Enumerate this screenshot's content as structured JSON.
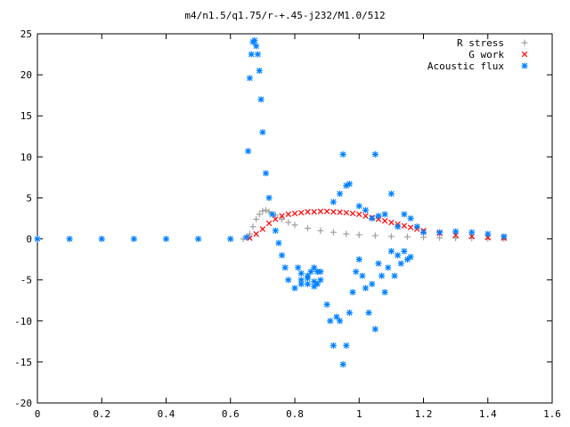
{
  "chart_data": {
    "type": "scatter",
    "title": "m4/n1.5/q1.75/r-+.45-j232/M1.0/512",
    "xlabel": "",
    "ylabel": "",
    "xlim": [
      0,
      1.6
    ],
    "ylim": [
      -20,
      25
    ],
    "xticks": [
      "0",
      "0.2",
      "0.4",
      "0.6",
      "0.8",
      "1",
      "1.2",
      "1.4",
      "1.6"
    ],
    "yticks": [
      "-20",
      "-15",
      "-10",
      "-5",
      "0",
      "5",
      "10",
      "15",
      "20",
      "25"
    ],
    "grid": false,
    "legend_position": "top-right",
    "series": [
      {
        "name": "R stress",
        "marker": "+",
        "color": "#a0a0a0",
        "x": [
          0.0,
          0.1,
          0.2,
          0.3,
          0.4,
          0.5,
          0.6,
          0.64,
          0.66,
          0.67,
          0.68,
          0.69,
          0.7,
          0.71,
          0.72,
          0.74,
          0.76,
          0.78,
          0.8,
          0.84,
          0.88,
          0.92,
          0.96,
          1.0,
          1.05,
          1.1,
          1.15,
          1.2,
          1.25,
          1.3,
          1.35,
          1.4,
          1.45
        ],
        "y": [
          0,
          0,
          0,
          0,
          0,
          0,
          0,
          0,
          0.6,
          1.5,
          2.4,
          3.0,
          3.4,
          3.5,
          3.3,
          2.9,
          2.4,
          2.0,
          1.7,
          1.3,
          1.0,
          0.8,
          0.6,
          0.5,
          0.4,
          0.3,
          0.25,
          0.2,
          0.15,
          0.1,
          0.1,
          0.05,
          0.0
        ]
      },
      {
        "name": "G work",
        "marker": "x",
        "color": "#ff0000",
        "x": [
          0.66,
          0.68,
          0.7,
          0.72,
          0.74,
          0.76,
          0.78,
          0.8,
          0.82,
          0.84,
          0.86,
          0.88,
          0.9,
          0.92,
          0.94,
          0.96,
          0.98,
          1.0,
          1.02,
          1.04,
          1.06,
          1.08,
          1.1,
          1.12,
          1.14,
          1.16,
          1.18,
          1.2,
          1.25,
          1.3,
          1.35,
          1.4,
          1.45
        ],
        "y": [
          0.1,
          0.6,
          1.2,
          1.9,
          2.4,
          2.8,
          3.0,
          3.1,
          3.2,
          3.3,
          3.3,
          3.35,
          3.35,
          3.3,
          3.25,
          3.2,
          3.1,
          3.0,
          2.8,
          2.6,
          2.4,
          2.2,
          2.0,
          1.8,
          1.6,
          1.4,
          1.2,
          1.0,
          0.7,
          0.45,
          0.3,
          0.15,
          0.1
        ]
      },
      {
        "name": "Acoustic flux",
        "marker": "*",
        "color": "#0080ff",
        "x": [
          0.0,
          0.1,
          0.2,
          0.3,
          0.4,
          0.5,
          0.6,
          0.65,
          0.655,
          0.66,
          0.665,
          0.67,
          0.675,
          0.68,
          0.685,
          0.69,
          0.695,
          0.7,
          0.71,
          0.72,
          0.73,
          0.74,
          0.75,
          0.76,
          0.77,
          0.78,
          0.8,
          0.82,
          0.84,
          0.85,
          0.86,
          0.87,
          0.88,
          0.87,
          0.86,
          0.84,
          0.82,
          0.81,
          0.82,
          0.84,
          0.86,
          0.88,
          0.9,
          0.91,
          0.92,
          0.93,
          0.94,
          0.95,
          0.96,
          0.97,
          0.98,
          0.99,
          1.0,
          1.01,
          1.02,
          1.03,
          1.04,
          1.05,
          1.06,
          1.07,
          1.08,
          1.09,
          1.1,
          1.11,
          1.12,
          1.13,
          1.14,
          1.15,
          1.16,
          0.95,
          0.96,
          1.05,
          0.92,
          0.94,
          0.97,
          1.0,
          1.02,
          1.04,
          1.06,
          1.08,
          1.1,
          1.12,
          1.14,
          1.16,
          1.18,
          1.2,
          1.25,
          1.3,
          1.35,
          1.4,
          1.45
        ],
        "y": [
          0,
          0,
          0,
          0,
          0,
          0,
          0,
          0.2,
          10.7,
          19.6,
          22.5,
          24.0,
          24.2,
          23.5,
          22.5,
          20.5,
          17.0,
          13.0,
          8.0,
          5.0,
          3.0,
          1.0,
          -0.5,
          -2.0,
          -3.5,
          -5.0,
          -6.0,
          -5.5,
          -4.5,
          -4.0,
          -3.5,
          -4.0,
          -5.0,
          -5.5,
          -5.8,
          -5.5,
          -5.0,
          -3.5,
          -4.2,
          -4.8,
          -5.2,
          -4.0,
          -8.0,
          -10.0,
          -13.0,
          -9.5,
          -10.0,
          -15.3,
          -13.0,
          -9.0,
          -6.5,
          -4.0,
          -2.5,
          -4.5,
          -6.0,
          -9.0,
          -5.5,
          -11.0,
          -3.0,
          -4.5,
          -6.5,
          -3.5,
          -1.5,
          -4.5,
          -2.0,
          -3.0,
          -1.5,
          -2.5,
          -2.2,
          10.3,
          6.5,
          10.3,
          4.5,
          5.5,
          6.7,
          4.0,
          3.5,
          2.5,
          2.8,
          3.0,
          5.5,
          1.5,
          3.0,
          2.5,
          1.5,
          0.8,
          0.8,
          0.9,
          0.8,
          0.6,
          0.3
        ]
      }
    ]
  }
}
